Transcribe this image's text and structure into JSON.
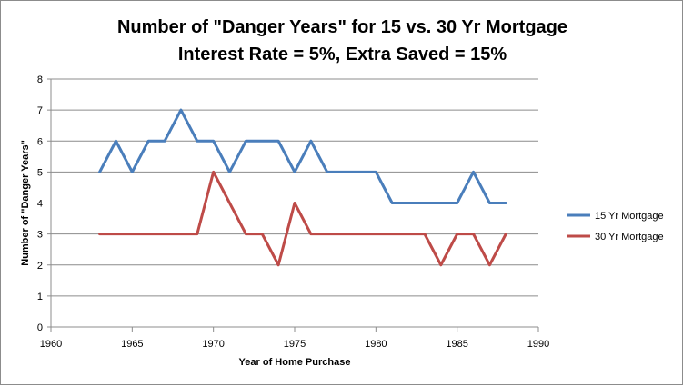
{
  "chart_data": {
    "type": "line",
    "title": "Number of \"Danger Years\" for 15 vs. 30 Yr Mortgage",
    "subtitle": "Interest Rate = 5%, Extra Saved = 15%",
    "xlabel": "Year of Home Purchase",
    "ylabel": "Number of \"Danger Years\"",
    "xlim": [
      1960,
      1990
    ],
    "ylim": [
      0,
      8
    ],
    "x_ticks": [
      1960,
      1965,
      1970,
      1975,
      1980,
      1985,
      1990
    ],
    "y_ticks": [
      0,
      1,
      2,
      3,
      4,
      5,
      6,
      7,
      8
    ],
    "grid": "horizontal",
    "legend_position": "right",
    "x": [
      1963,
      1964,
      1965,
      1966,
      1967,
      1968,
      1969,
      1970,
      1971,
      1972,
      1973,
      1974,
      1975,
      1976,
      1977,
      1978,
      1979,
      1980,
      1981,
      1982,
      1983,
      1984,
      1985,
      1986,
      1987,
      1988
    ],
    "series": [
      {
        "name": "15 Yr Mortgage",
        "color": "#4a7ebb",
        "values": [
          5,
          6,
          5,
          6,
          6,
          7,
          6,
          6,
          5,
          6,
          6,
          6,
          5,
          6,
          5,
          5,
          5,
          5,
          4,
          4,
          4,
          4,
          4,
          5,
          4,
          4
        ]
      },
      {
        "name": "30 Yr Mortgage",
        "color": "#be4b48",
        "values": [
          3,
          3,
          3,
          3,
          3,
          3,
          3,
          5,
          4,
          3,
          3,
          2,
          4,
          3,
          3,
          3,
          3,
          3,
          3,
          3,
          3,
          2,
          3,
          3,
          2,
          3
        ]
      }
    ]
  }
}
